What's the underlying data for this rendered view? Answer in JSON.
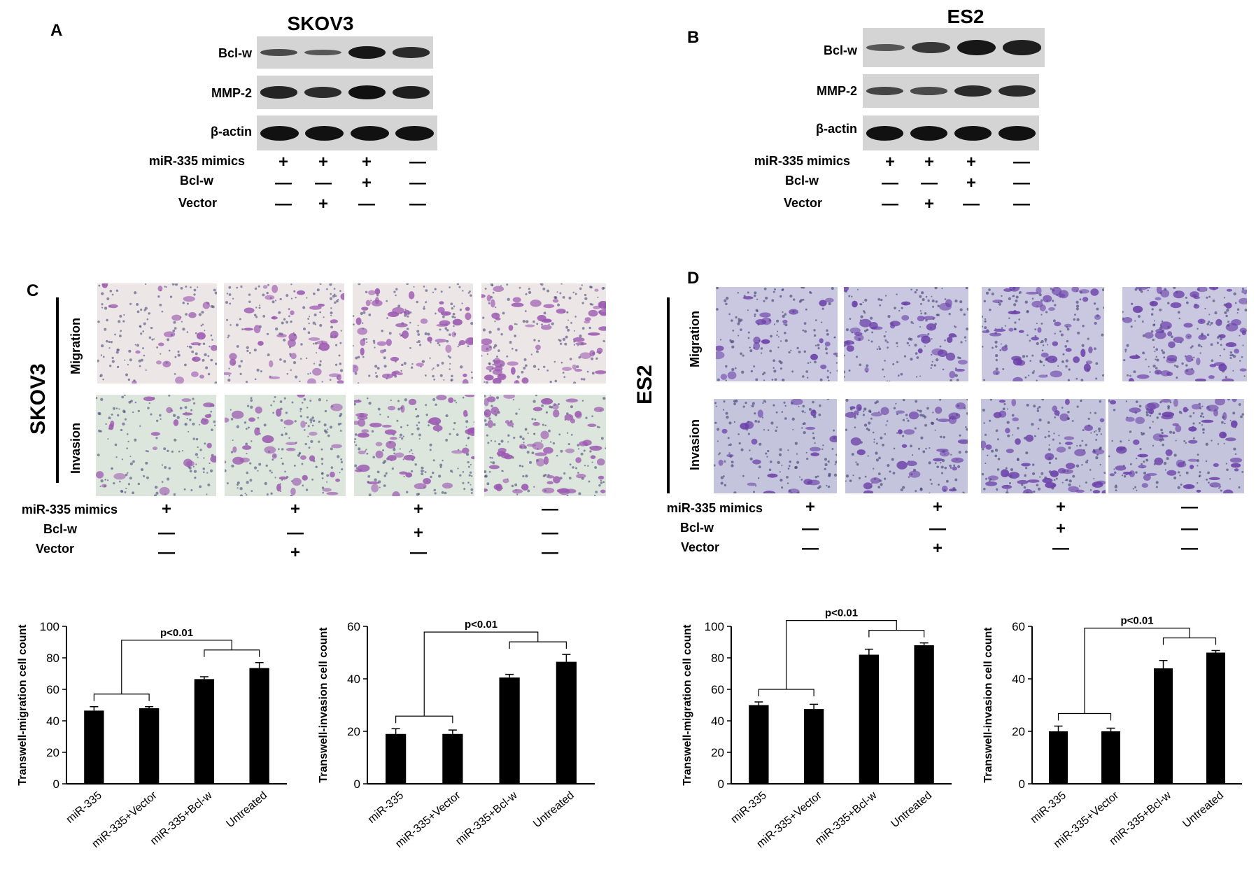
{
  "panels": {
    "A": "A",
    "B": "B",
    "C": "C",
    "D": "D"
  },
  "blots": [
    {
      "id": "A",
      "title": "SKOV3",
      "rows": [
        {
          "label": "Bcl-w",
          "intensity": [
            0.55,
            0.45,
            0.95,
            0.8
          ]
        },
        {
          "label": "MMP-2",
          "intensity": [
            0.85,
            0.8,
            1.0,
            0.9
          ]
        },
        {
          "label": "β-actin",
          "intensity": [
            1.0,
            1.0,
            1.0,
            1.0
          ]
        }
      ],
      "treatments": [
        {
          "label": "miR-335 mimics",
          "signs": [
            "+",
            "+",
            "+",
            "—"
          ]
        },
        {
          "label": "Bcl-w",
          "signs": [
            "—",
            "—",
            "+",
            "—"
          ]
        },
        {
          "label": "Vector",
          "signs": [
            "—",
            "+",
            "—",
            "—"
          ]
        }
      ]
    },
    {
      "id": "B",
      "title": "ES2",
      "rows": [
        {
          "label": "Bcl-w",
          "intensity": [
            0.45,
            0.7,
            0.95,
            0.9
          ]
        },
        {
          "label": "MMP-2",
          "intensity": [
            0.6,
            0.55,
            0.8,
            0.8
          ]
        },
        {
          "label": "β-actin",
          "intensity": [
            1.0,
            1.0,
            1.0,
            1.0
          ]
        }
      ],
      "treatments": [
        {
          "label": "miR-335 mimics",
          "signs": [
            "+",
            "+",
            "+",
            "—"
          ]
        },
        {
          "label": "Bcl-w",
          "signs": [
            "—",
            "—",
            "+",
            "—"
          ]
        },
        {
          "label": "Vector",
          "signs": [
            "—",
            "+",
            "—",
            "—"
          ]
        }
      ]
    }
  ],
  "micrographs": [
    {
      "id": "C",
      "cell_line": "SKOV3",
      "rows": [
        "Migration",
        "Invasion"
      ],
      "treatments": [
        {
          "label": "miR-335 mimics",
          "signs": [
            "+",
            "+",
            "+",
            "—"
          ]
        },
        {
          "label": "Bcl-w",
          "signs": [
            "—",
            "—",
            "+",
            "—"
          ]
        },
        {
          "label": "Vector",
          "signs": [
            "—",
            "+",
            "—",
            "—"
          ]
        }
      ],
      "colors": {
        "migration_bg": "#ede6e6",
        "invasion_bg": "#dde6dc",
        "cell": "#9b58b0",
        "dot": "#4a4a7a"
      }
    },
    {
      "id": "D",
      "cell_line": "ES2",
      "rows": [
        "Migration",
        "Invasion"
      ],
      "treatments": [
        {
          "label": "miR-335 mimics",
          "signs": [
            "+",
            "+",
            "+",
            "—"
          ]
        },
        {
          "label": "Bcl-w",
          "signs": [
            "—",
            "—",
            "+",
            "—"
          ]
        },
        {
          "label": "Vector",
          "signs": [
            "—",
            "+",
            "—",
            "—"
          ]
        }
      ],
      "colors": {
        "migration_bg": "#c9c8e0",
        "invasion_bg": "#c4c4dc",
        "cell": "#6a3fa8",
        "dot": "#3c3c70"
      }
    }
  ],
  "chart_data": [
    {
      "type": "bar",
      "categories": [
        "miR-335",
        "miR-335+Vector",
        "miR-335+Bcl-w",
        "Untreated"
      ],
      "values": [
        46.5,
        48,
        66.5,
        73.5
      ],
      "errors": [
        2.5,
        1,
        1.5,
        3.5
      ],
      "ylabel": "Transwell-migration cell count",
      "ylim": [
        0,
        100
      ],
      "yticks": [
        0,
        20,
        40,
        60,
        80,
        100
      ],
      "annotation": "p<0.01",
      "bar_color": "#000000"
    },
    {
      "type": "bar",
      "categories": [
        "miR-335",
        "miR-335+Vector",
        "miR-335+Bcl-w",
        "Untreated"
      ],
      "values": [
        19,
        19,
        40.5,
        46.5
      ],
      "errors": [
        2,
        1.5,
        1.2,
        2.8
      ],
      "ylabel": "Transwell-invasion cell count",
      "ylim": [
        0,
        60
      ],
      "yticks": [
        0,
        20,
        40,
        60
      ],
      "annotation": "p<0.01",
      "bar_color": "#000000"
    },
    {
      "type": "bar",
      "categories": [
        "miR-335",
        "miR-335+Vector",
        "miR-335+Bcl-w",
        "Untreated"
      ],
      "values": [
        50,
        47.5,
        82,
        88
      ],
      "errors": [
        2,
        3,
        3.5,
        1.5
      ],
      "ylabel": "Transwell-migration cell count",
      "ylim": [
        0,
        100
      ],
      "yticks": [
        0,
        20,
        40,
        60,
        80,
        100
      ],
      "annotation": "p<0.01",
      "bar_color": "#000000"
    },
    {
      "type": "bar",
      "categories": [
        "miR-335",
        "miR-335+Vector",
        "miR-335+Bcl-w",
        "Untreated"
      ],
      "values": [
        20,
        20,
        44,
        50
      ],
      "errors": [
        2,
        1.2,
        3,
        0.8
      ],
      "ylabel": "Transwell-invasion cell count",
      "ylim": [
        0,
        60
      ],
      "yticks": [
        0,
        20,
        40,
        60
      ],
      "annotation": "p<0.01",
      "bar_color": "#000000"
    }
  ]
}
